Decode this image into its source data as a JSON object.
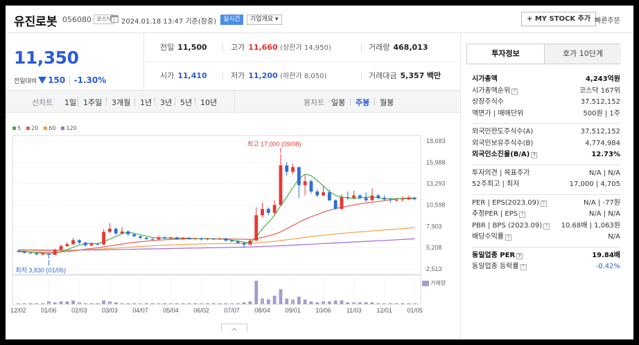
{
  "header": {
    "stock_name": "유진로봇",
    "stock_code": "056080",
    "market_badge": "코스닥",
    "datetime": "2024.01.18 13:47 기준(장중)",
    "realtime_label": "실시간",
    "company_info_label": "기업개요",
    "mystock_label": "+ MY STOCK 추가",
    "quick_order_label": "빠른주문"
  },
  "price": {
    "current": "11,350",
    "change_label": "전일대비",
    "change": "150",
    "change_pct": "-1.30%"
  },
  "stats": {
    "prev_close_label": "전일",
    "prev_close": "11,500",
    "high_label": "고가",
    "high": "11,660",
    "upper_limit_text": "(상한가 14,950)",
    "volume_label": "거래량",
    "volume": "468,013",
    "open_label": "시가",
    "open": "11,410",
    "low_label": "저가",
    "low": "11,200",
    "lower_limit_text": "(하한가 8,050)",
    "value_label": "거래대금",
    "value": "5,357",
    "value_unit": "백만"
  },
  "tabs": {
    "period_label": "선차트",
    "periods": [
      "1일",
      "1주일",
      "3개월",
      "1년",
      "3년",
      "5년",
      "10년"
    ],
    "candle_label": "봉차트",
    "candles": [
      "일봉",
      "주봉",
      "월봉"
    ],
    "active_candle": "주봉"
  },
  "chart_data": {
    "type": "candlestick",
    "period": "weekly",
    "y_ticks": [
      "18,683",
      "15,988",
      "13,293",
      "10,598",
      "7,903",
      "5,208",
      "2,513"
    ],
    "ylim": [
      2513,
      18683
    ],
    "x_ticks": [
      "12/02",
      "01/06",
      "02/03",
      "03/03",
      "04/07",
      "05/04",
      "06/02",
      "07/07",
      "08/04",
      "09/01",
      "10/06",
      "11/03",
      "12/01",
      "01/05"
    ],
    "legend": [
      {
        "name": "5",
        "color": "#45b04a"
      },
      {
        "name": "20",
        "color": "#e55a4f"
      },
      {
        "name": "60",
        "color": "#f0a14a"
      },
      {
        "name": "120",
        "color": "#a866d9"
      }
    ],
    "annotations": {
      "high": "최고 17,000 (09/08)",
      "low": "최저 3,830 (01/06)"
    },
    "volume_label": "거래량",
    "candles": [
      {
        "o": 4800,
        "c": 4700,
        "h": 4950,
        "l": 4600
      },
      {
        "o": 4700,
        "c": 4550,
        "h": 4850,
        "l": 4450
      },
      {
        "o": 4550,
        "c": 4500,
        "h": 4650,
        "l": 4400
      },
      {
        "o": 4500,
        "c": 4350,
        "h": 4600,
        "l": 4250
      },
      {
        "o": 4350,
        "c": 4450,
        "h": 4550,
        "l": 4200
      },
      {
        "o": 4450,
        "c": 4300,
        "h": 4500,
        "l": 3830
      },
      {
        "o": 4300,
        "c": 4950,
        "h": 5100,
        "l": 4250
      },
      {
        "o": 4950,
        "c": 5400,
        "h": 5600,
        "l": 4850
      },
      {
        "o": 5400,
        "c": 5650,
        "h": 5900,
        "l": 5300
      },
      {
        "o": 5650,
        "c": 6150,
        "h": 6450,
        "l": 5500
      },
      {
        "o": 6150,
        "c": 5850,
        "h": 6250,
        "l": 5650
      },
      {
        "o": 5850,
        "c": 5500,
        "h": 5950,
        "l": 5350
      },
      {
        "o": 5500,
        "c": 5700,
        "h": 5850,
        "l": 5400
      },
      {
        "o": 5700,
        "c": 5600,
        "h": 5800,
        "l": 5450
      },
      {
        "o": 5600,
        "c": 7200,
        "h": 7550,
        "l": 5550
      },
      {
        "o": 7200,
        "c": 7600,
        "h": 8300,
        "l": 7000
      },
      {
        "o": 7600,
        "c": 7000,
        "h": 7750,
        "l": 6800
      },
      {
        "o": 7000,
        "c": 7250,
        "h": 7800,
        "l": 6950
      },
      {
        "o": 7250,
        "c": 6900,
        "h": 7400,
        "l": 6700
      },
      {
        "o": 6900,
        "c": 6650,
        "h": 7000,
        "l": 6550
      },
      {
        "o": 6650,
        "c": 6450,
        "h": 6700,
        "l": 6300
      },
      {
        "o": 6450,
        "c": 6300,
        "h": 6550,
        "l": 6200
      },
      {
        "o": 6300,
        "c": 6250,
        "h": 6400,
        "l": 6150
      },
      {
        "o": 6250,
        "c": 6500,
        "h": 6700,
        "l": 6200
      },
      {
        "o": 6500,
        "c": 6350,
        "h": 6650,
        "l": 6300
      },
      {
        "o": 6350,
        "c": 6500,
        "h": 6550,
        "l": 6300
      },
      {
        "o": 6500,
        "c": 6300,
        "h": 6600,
        "l": 6200
      },
      {
        "o": 6300,
        "c": 6450,
        "h": 6550,
        "l": 6200
      },
      {
        "o": 6450,
        "c": 6300,
        "h": 6550,
        "l": 6200
      },
      {
        "o": 6300,
        "c": 6400,
        "h": 6450,
        "l": 6150
      },
      {
        "o": 6400,
        "c": 6250,
        "h": 6500,
        "l": 6100
      },
      {
        "o": 6250,
        "c": 6350,
        "h": 6450,
        "l": 6150
      },
      {
        "o": 6350,
        "c": 6300,
        "h": 6400,
        "l": 6150
      },
      {
        "o": 6300,
        "c": 6350,
        "h": 6450,
        "l": 6200
      },
      {
        "o": 6350,
        "c": 6100,
        "h": 6450,
        "l": 6000
      },
      {
        "o": 6100,
        "c": 6000,
        "h": 6200,
        "l": 5900
      },
      {
        "o": 6000,
        "c": 5800,
        "h": 6050,
        "l": 5700
      },
      {
        "o": 5800,
        "c": 5600,
        "h": 5900,
        "l": 5200
      },
      {
        "o": 5600,
        "c": 6100,
        "h": 6300,
        "l": 5550
      },
      {
        "o": 6100,
        "c": 9300,
        "h": 10300,
        "l": 6050
      },
      {
        "o": 9300,
        "c": 10100,
        "h": 10900,
        "l": 9000
      },
      {
        "o": 10100,
        "c": 9600,
        "h": 10300,
        "l": 9300
      },
      {
        "o": 9600,
        "c": 10600,
        "h": 11200,
        "l": 9400
      },
      {
        "o": 10600,
        "c": 15600,
        "h": 17000,
        "l": 10500
      },
      {
        "o": 15600,
        "c": 14800,
        "h": 16000,
        "l": 14300
      },
      {
        "o": 14800,
        "c": 15400,
        "h": 15800,
        "l": 14500
      },
      {
        "o": 15400,
        "c": 13100,
        "h": 15400,
        "l": 11500
      },
      {
        "o": 13100,
        "c": 13600,
        "h": 14400,
        "l": 11800
      },
      {
        "o": 13600,
        "c": 12300,
        "h": 13800,
        "l": 12000
      },
      {
        "o": 12300,
        "c": 11800,
        "h": 12600,
        "l": 11600
      },
      {
        "o": 11800,
        "c": 12200,
        "h": 13000,
        "l": 11700
      },
      {
        "o": 12200,
        "c": 11200,
        "h": 12500,
        "l": 11100
      },
      {
        "o": 11200,
        "c": 10100,
        "h": 11300,
        "l": 10000
      },
      {
        "o": 10100,
        "c": 11600,
        "h": 12000,
        "l": 10000
      },
      {
        "o": 11600,
        "c": 11500,
        "h": 12300,
        "l": 11200
      },
      {
        "o": 11500,
        "c": 11800,
        "h": 12400,
        "l": 11300
      },
      {
        "o": 11800,
        "c": 11500,
        "h": 12000,
        "l": 11300
      },
      {
        "o": 11500,
        "c": 11200,
        "h": 12200,
        "l": 11000
      },
      {
        "o": 11200,
        "c": 11800,
        "h": 12700,
        "l": 11100
      },
      {
        "o": 11800,
        "c": 11500,
        "h": 12000,
        "l": 11300
      },
      {
        "o": 11500,
        "c": 11300,
        "h": 11800,
        "l": 11100
      },
      {
        "o": 11300,
        "c": 11200,
        "h": 11500,
        "l": 10900
      },
      {
        "o": 11200,
        "c": 11250,
        "h": 11500,
        "l": 11000
      },
      {
        "o": 11250,
        "c": 11300,
        "h": 11700,
        "l": 11100
      },
      {
        "o": 11300,
        "c": 11500,
        "h": 11800,
        "l": 11200
      },
      {
        "o": 11500,
        "c": 11350,
        "h": 11660,
        "l": 11200
      }
    ],
    "ma5": [
      4800,
      4750,
      4650,
      4600,
      4500,
      4400,
      4500,
      4700,
      4950,
      5250,
      5550,
      5700,
      5750,
      5700,
      5950,
      6300,
      6600,
      6950,
      7200,
      7000,
      6850,
      6650,
      6500,
      6450,
      6450,
      6400,
      6400,
      6400,
      6400,
      6350,
      6350,
      6350,
      6300,
      6300,
      6250,
      6150,
      6050,
      5900,
      5800,
      6500,
      7600,
      8400,
      9300,
      10500,
      11600,
      12800,
      13900,
      14500,
      14300,
      13700,
      13000,
      12300,
      11800,
      11600,
      11500,
      11400,
      11500,
      11600,
      11600,
      11500,
      11400,
      11400,
      11400,
      11400,
      11400,
      11350
    ],
    "ma20": [
      4700,
      4680,
      4660,
      4640,
      4620,
      4600,
      4620,
      4660,
      4720,
      4800,
      4900,
      5000,
      5100,
      5200,
      5300,
      5420,
      5540,
      5660,
      5780,
      5880,
      5960,
      6030,
      6100,
      6160,
      6200,
      6240,
      6270,
      6300,
      6320,
      6330,
      6340,
      6340,
      6340,
      6330,
      6320,
      6300,
      6280,
      6260,
      6240,
      6350,
      6500,
      6700,
      6900,
      7200,
      7600,
      8000,
      8400,
      8800,
      9100,
      9400,
      9700,
      9950,
      10150,
      10300,
      10450,
      10600,
      10750,
      10850,
      10950,
      11050,
      11150,
      11250,
      11350,
      11450,
      11500,
      11500
    ],
    "ma60": [
      4900,
      4880,
      4860,
      4840,
      4820,
      4800,
      4800,
      4810,
      4830,
      4860,
      4900,
      4940,
      4980,
      5020,
      5060,
      5100,
      5150,
      5200,
      5250,
      5300,
      5350,
      5400,
      5440,
      5480,
      5520,
      5550,
      5580,
      5610,
      5630,
      5650,
      5670,
      5690,
      5700,
      5710,
      5720,
      5730,
      5740,
      5750,
      5760,
      5800,
      5860,
      5930,
      6000,
      6100,
      6200,
      6300,
      6400,
      6500,
      6600,
      6700,
      6780,
      6860,
      6940,
      7010,
      7080,
      7140,
      7200,
      7260,
      7320,
      7380,
      7440,
      7500,
      7560,
      7620,
      7680,
      7740
    ],
    "ma120": [
      4950,
      4940,
      4930,
      4920,
      4910,
      4900,
      4895,
      4890,
      4890,
      4890,
      4895,
      4900,
      4910,
      4920,
      4930,
      4945,
      4960,
      4975,
      4990,
      5005,
      5020,
      5035,
      5050,
      5065,
      5080,
      5095,
      5110,
      5125,
      5140,
      5155,
      5170,
      5185,
      5200,
      5215,
      5230,
      5245,
      5260,
      5275,
      5290,
      5320,
      5350,
      5380,
      5410,
      5440,
      5480,
      5520,
      5560,
      5600,
      5640,
      5680,
      5720,
      5760,
      5800,
      5840,
      5880,
      5920,
      5960,
      6000,
      6040,
      6080,
      6120,
      6160,
      6200,
      6240,
      6280,
      6320
    ],
    "volume": [
      1,
      1,
      1,
      1,
      1,
      3,
      2,
      3,
      3,
      4,
      2,
      1,
      1,
      1,
      4,
      3,
      2,
      1,
      1,
      1,
      1,
      1,
      1,
      1,
      1,
      1,
      1,
      1,
      1,
      1,
      1,
      1,
      1,
      1,
      1,
      1,
      1,
      2,
      3,
      25,
      6,
      5,
      9,
      16,
      6,
      5,
      8,
      5,
      3,
      2,
      3,
      3,
      4,
      4,
      2,
      2,
      2,
      2,
      2,
      1,
      1,
      1,
      1,
      1,
      1,
      1
    ]
  },
  "side": {
    "tab_invest": "투자정보",
    "tab_orderbook": "호가 10단계",
    "group1": [
      {
        "k": "시가총액",
        "v": "4,243억원",
        "bold": true
      },
      {
        "k": "시가총액순위",
        "v": "코스닥 167위",
        "q": true
      },
      {
        "k": "상장주식수",
        "v": "37,512,152"
      },
      {
        "k": "액면가 | 매매단위",
        "v": "500원 | 1주"
      }
    ],
    "group2": [
      {
        "k": "외국인한도주식수(A)",
        "v": "37,512,152"
      },
      {
        "k": "외국인보유주식수(B)",
        "v": "4,774,984"
      },
      {
        "k": "외국인소진율(B/A)",
        "v": "12.73%",
        "bold": true,
        "q": true
      }
    ],
    "group3": [
      {
        "k": "투자의견 | 목표주가",
        "v": "N/A | N/A"
      },
      {
        "k": "52주최고 | 최저",
        "v": "17,000 | 4,705"
      }
    ],
    "group4": [
      {
        "k": "PER | EPS(2023.09)",
        "v": "N/A | -77원",
        "q": true
      },
      {
        "k": "추정PER | EPS",
        "v": "N/A | N/A",
        "q": true
      },
      {
        "k": "PBR | BPS (2023.09)",
        "v": "10.68배 | 1,063원",
        "q": true
      },
      {
        "k": "배당수익률",
        "v": "N/A",
        "q": true
      }
    ],
    "group5": [
      {
        "k": "동일업종 PER",
        "v": "19.84배",
        "bold": true,
        "q": true
      },
      {
        "k": "동일업종 등락률",
        "v": "-0.42%",
        "blue": true,
        "q": true
      }
    ]
  }
}
